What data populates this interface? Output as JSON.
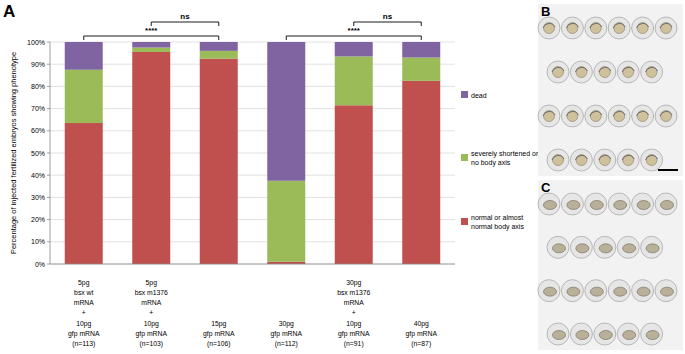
{
  "panel_labels": [
    "A",
    "B",
    "C"
  ],
  "chart_data": {
    "type": "bar",
    "stacked": true,
    "grid": true,
    "legend": "right",
    "y_label": "Percentage of injected fertilized embryos showing phenotype",
    "categories": [
      "5pg\nbsx wt\nmRNA\n+\n10pg\ngfp mRNA\n(n=113)",
      "5pg\nbsx m1376\nmRNA\n+\n10pg\ngfp mRNA\n(n=103)",
      "15pg\ngfp mRNA\n(n=106)",
      "30pg\ngfp mRNA\n(n=112)",
      "30pg\nbsx m1376\nmRNA\n+\n10pg\ngfp mRNA\n(n=91)",
      "40pg\ngfp mRNA\n(n=87)"
    ],
    "series": [
      {
        "name": "normal or almost normal body axis",
        "color": "#c0504d",
        "values": [
          63.5,
          95.5,
          92.5,
          1,
          71.5,
          82.5
        ]
      },
      {
        "name": "severely shortened or no body axis",
        "color": "#9bbb59",
        "values": [
          24,
          2,
          3.5,
          36.5,
          22,
          10.5
        ]
      },
      {
        "name": "dead",
        "color": "#8064a2",
        "values": [
          12.5,
          2.5,
          4,
          62.5,
          6.5,
          7
        ]
      }
    ],
    "ylim": [
      0,
      100
    ],
    "yticks": [
      {
        "value": 0,
        "label": "0%"
      },
      {
        "value": 10,
        "label": "10%"
      },
      {
        "value": 20,
        "label": "20%"
      },
      {
        "value": 30,
        "label": "30%"
      },
      {
        "value": 40,
        "label": "40%"
      },
      {
        "value": 50,
        "label": "50%"
      },
      {
        "value": 60,
        "label": "60%"
      },
      {
        "value": 70,
        "label": "70%"
      },
      {
        "value": 80,
        "label": "80%"
      },
      {
        "value": 90,
        "label": "90%"
      },
      {
        "value": 100,
        "label": "100%"
      }
    ],
    "annotations": [
      {
        "text": "****",
        "from": 0,
        "to": 2
      },
      {
        "text": "ns",
        "from": 1,
        "to": 2
      },
      {
        "text": "****",
        "from": 3,
        "to": 5
      },
      {
        "text": "ns",
        "from": 4,
        "to": 5
      }
    ]
  }
}
